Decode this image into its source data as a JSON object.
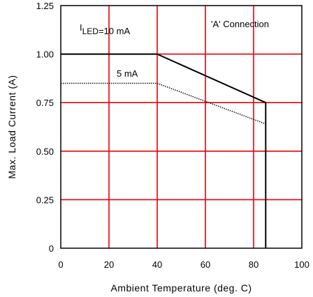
{
  "chart_data": {
    "type": "line",
    "title": "",
    "xlabel": "Ambient Temperature (deg. C)",
    "ylabel": "Max. Load Current (A)",
    "xlim": [
      0,
      100
    ],
    "ylim": [
      0,
      1.25
    ],
    "xticks": [
      0,
      20,
      40,
      60,
      80,
      100
    ],
    "yticks": [
      0,
      0.25,
      0.5,
      0.75,
      1.0,
      1.25
    ],
    "xtick_labels": [
      "0",
      "20",
      "40",
      "60",
      "80",
      "100"
    ],
    "ytick_labels": [
      "0",
      "0.25",
      "0.50",
      "0.75",
      "1.00",
      "1.25"
    ],
    "grid": true,
    "grid_color": "#e8000a",
    "annotations": {
      "connection": "'A' Connection",
      "series_10ma_prefix": "I",
      "series_10ma_sub": "LED",
      "series_10ma_suffix": "=10 mA",
      "series_5ma": "5 mA"
    },
    "series": [
      {
        "name": "I LED=10 mA",
        "style": "solid",
        "x": [
          0,
          40,
          85,
          85
        ],
        "y": [
          1.0,
          1.0,
          0.75,
          0
        ]
      },
      {
        "name": "5 mA",
        "style": "dotted",
        "x": [
          0,
          40,
          85
        ],
        "y": [
          0.85,
          0.85,
          0.64
        ]
      }
    ]
  }
}
